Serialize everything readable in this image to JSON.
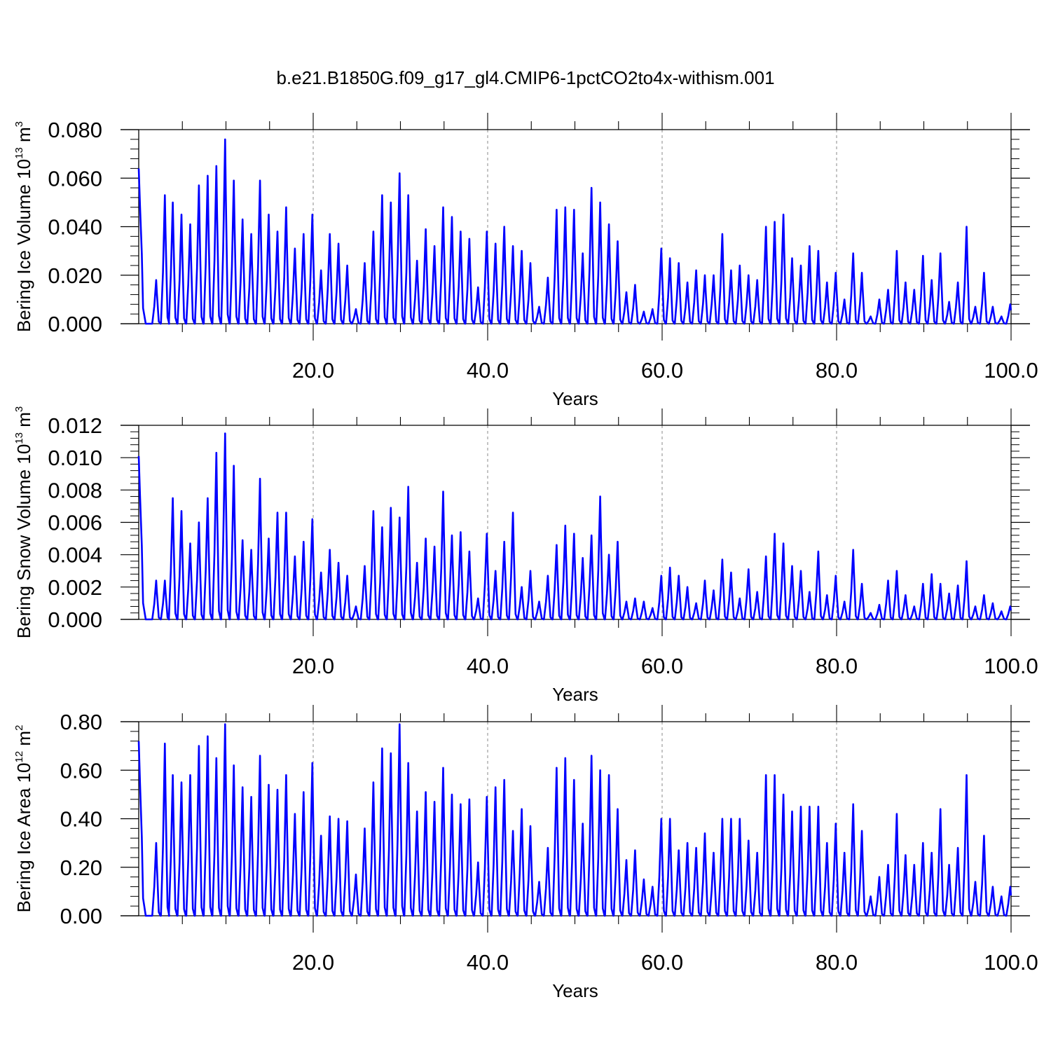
{
  "title": "b.e21.B1850G.f09_g17_gl4.CMIP6-1pctCO2to4x-withism.001",
  "line_color": "#0000ff",
  "chart_data": [
    {
      "type": "line",
      "ylabel_main": "Bering Ice Volume 10",
      "ylabel_exp": "13",
      "ylabel_unit": " m",
      "ylabel_unit_exp": "3",
      "xlabel": "Years",
      "xlim": [
        0,
        100
      ],
      "ylim": [
        0,
        0.08
      ],
      "x_ticks": [
        20,
        40,
        60,
        80,
        100
      ],
      "x_tick_labels": [
        "20.0",
        "40.0",
        "60.0",
        "80.0",
        "100.0"
      ],
      "y_ticks": [
        0,
        0.02,
        0.04,
        0.06,
        0.08
      ],
      "y_tick_labels": [
        "0.000",
        "0.020",
        "0.040",
        "0.060",
        "0.080"
      ],
      "gridlines_x": [
        20,
        40,
        60,
        80
      ],
      "start_value": 0.064,
      "peaks": [
        [
          2.0,
          0.018
        ],
        [
          3.0,
          0.053
        ],
        [
          3.9,
          0.05
        ],
        [
          4.9,
          0.045
        ],
        [
          5.9,
          0.041
        ],
        [
          6.9,
          0.057
        ],
        [
          7.9,
          0.061
        ],
        [
          8.9,
          0.065
        ],
        [
          9.9,
          0.076
        ],
        [
          10.9,
          0.059
        ],
        [
          11.9,
          0.043
        ],
        [
          12.9,
          0.037
        ],
        [
          13.9,
          0.059
        ],
        [
          14.9,
          0.045
        ],
        [
          15.9,
          0.038
        ],
        [
          16.9,
          0.048
        ],
        [
          17.9,
          0.031
        ],
        [
          18.9,
          0.037
        ],
        [
          19.9,
          0.045
        ],
        [
          20.9,
          0.022
        ],
        [
          21.9,
          0.037
        ],
        [
          22.9,
          0.033
        ],
        [
          23.9,
          0.024
        ],
        [
          24.9,
          0.006
        ],
        [
          25.9,
          0.025
        ],
        [
          26.9,
          0.038
        ],
        [
          27.9,
          0.053
        ],
        [
          28.9,
          0.05
        ],
        [
          29.9,
          0.062
        ],
        [
          30.9,
          0.053
        ],
        [
          31.9,
          0.026
        ],
        [
          32.9,
          0.039
        ],
        [
          33.9,
          0.032
        ],
        [
          34.9,
          0.048
        ],
        [
          35.9,
          0.044
        ],
        [
          36.9,
          0.038
        ],
        [
          37.9,
          0.035
        ],
        [
          38.9,
          0.015
        ],
        [
          39.9,
          0.038
        ],
        [
          40.9,
          0.033
        ],
        [
          41.9,
          0.04
        ],
        [
          42.9,
          0.032
        ],
        [
          43.9,
          0.03
        ],
        [
          44.9,
          0.025
        ],
        [
          45.9,
          0.007
        ],
        [
          46.9,
          0.019
        ],
        [
          47.9,
          0.047
        ],
        [
          48.9,
          0.048
        ],
        [
          49.9,
          0.047
        ],
        [
          50.9,
          0.029
        ],
        [
          51.9,
          0.056
        ],
        [
          52.9,
          0.05
        ],
        [
          53.9,
          0.041
        ],
        [
          54.9,
          0.034
        ],
        [
          55.9,
          0.013
        ],
        [
          56.9,
          0.016
        ],
        [
          57.9,
          0.005
        ],
        [
          58.9,
          0.006
        ],
        [
          59.9,
          0.031
        ],
        [
          60.9,
          0.027
        ],
        [
          61.9,
          0.025
        ],
        [
          62.9,
          0.017
        ],
        [
          63.9,
          0.022
        ],
        [
          64.9,
          0.02
        ],
        [
          65.9,
          0.02
        ],
        [
          66.9,
          0.037
        ],
        [
          67.9,
          0.022
        ],
        [
          68.9,
          0.024
        ],
        [
          69.9,
          0.02
        ],
        [
          70.9,
          0.018
        ],
        [
          71.9,
          0.04
        ],
        [
          72.9,
          0.042
        ],
        [
          73.9,
          0.045
        ],
        [
          74.9,
          0.027
        ],
        [
          75.9,
          0.024
        ],
        [
          76.9,
          0.032
        ],
        [
          77.9,
          0.03
        ],
        [
          78.9,
          0.017
        ],
        [
          79.9,
          0.021
        ],
        [
          80.9,
          0.01
        ],
        [
          81.9,
          0.029
        ],
        [
          82.9,
          0.021
        ],
        [
          83.9,
          0.003
        ],
        [
          84.9,
          0.01
        ],
        [
          85.9,
          0.014
        ],
        [
          86.9,
          0.03
        ],
        [
          87.9,
          0.017
        ],
        [
          88.9,
          0.014
        ],
        [
          89.9,
          0.028
        ],
        [
          90.9,
          0.018
        ],
        [
          91.9,
          0.029
        ],
        [
          92.9,
          0.009
        ],
        [
          93.9,
          0.017
        ],
        [
          94.9,
          0.04
        ],
        [
          95.9,
          0.007
        ],
        [
          96.9,
          0.021
        ],
        [
          97.9,
          0.007
        ],
        [
          98.9,
          0.003
        ],
        [
          99.9,
          0.008
        ]
      ]
    },
    {
      "type": "line",
      "ylabel_main": "Bering Snow Volume 10",
      "ylabel_exp": "13",
      "ylabel_unit": " m",
      "ylabel_unit_exp": "3",
      "xlabel": "Years",
      "xlim": [
        0,
        100
      ],
      "ylim": [
        0,
        0.012
      ],
      "x_ticks": [
        20,
        40,
        60,
        80,
        100
      ],
      "x_tick_labels": [
        "20.0",
        "40.0",
        "60.0",
        "80.0",
        "100.0"
      ],
      "y_ticks": [
        0,
        0.002,
        0.004,
        0.006,
        0.008,
        0.01,
        0.012
      ],
      "y_tick_labels": [
        "0.000",
        "0.002",
        "0.004",
        "0.006",
        "0.008",
        "0.010",
        "0.012"
      ],
      "gridlines_x": [
        20,
        40,
        60,
        80
      ],
      "start_value": 0.0101,
      "peaks": [
        [
          2.0,
          0.0024
        ],
        [
          3.0,
          0.0024
        ],
        [
          3.9,
          0.0075
        ],
        [
          4.9,
          0.0067
        ],
        [
          5.9,
          0.0047
        ],
        [
          6.9,
          0.006
        ],
        [
          7.9,
          0.0075
        ],
        [
          8.9,
          0.0103
        ],
        [
          9.9,
          0.0115
        ],
        [
          10.9,
          0.0095
        ],
        [
          11.9,
          0.0049
        ],
        [
          12.9,
          0.0043
        ],
        [
          13.9,
          0.0087
        ],
        [
          14.9,
          0.005
        ],
        [
          15.9,
          0.0066
        ],
        [
          16.9,
          0.0066
        ],
        [
          17.9,
          0.0039
        ],
        [
          18.9,
          0.0048
        ],
        [
          19.9,
          0.0062
        ],
        [
          20.9,
          0.0029
        ],
        [
          21.9,
          0.0043
        ],
        [
          22.9,
          0.0035
        ],
        [
          23.9,
          0.0027
        ],
        [
          24.9,
          0.0008
        ],
        [
          25.9,
          0.0033
        ],
        [
          26.9,
          0.0067
        ],
        [
          27.9,
          0.0057
        ],
        [
          28.9,
          0.0069
        ],
        [
          29.9,
          0.0063
        ],
        [
          30.9,
          0.0082
        ],
        [
          31.9,
          0.0035
        ],
        [
          32.9,
          0.005
        ],
        [
          33.9,
          0.0045
        ],
        [
          34.9,
          0.0079
        ],
        [
          35.9,
          0.0052
        ],
        [
          36.9,
          0.0054
        ],
        [
          37.9,
          0.0042
        ],
        [
          38.9,
          0.0013
        ],
        [
          39.9,
          0.0053
        ],
        [
          40.9,
          0.003
        ],
        [
          41.9,
          0.0048
        ],
        [
          42.9,
          0.0066
        ],
        [
          43.9,
          0.002
        ],
        [
          44.9,
          0.003
        ],
        [
          45.9,
          0.0011
        ],
        [
          46.9,
          0.0027
        ],
        [
          47.9,
          0.0046
        ],
        [
          48.9,
          0.0058
        ],
        [
          49.9,
          0.0053
        ],
        [
          50.9,
          0.0038
        ],
        [
          51.9,
          0.0052
        ],
        [
          52.9,
          0.0076
        ],
        [
          53.9,
          0.004
        ],
        [
          54.9,
          0.0048
        ],
        [
          55.9,
          0.0011
        ],
        [
          56.9,
          0.0013
        ],
        [
          57.9,
          0.0011
        ],
        [
          58.9,
          0.0007
        ],
        [
          59.9,
          0.0027
        ],
        [
          60.9,
          0.0032
        ],
        [
          61.9,
          0.0027
        ],
        [
          62.9,
          0.002
        ],
        [
          63.9,
          0.001
        ],
        [
          64.9,
          0.0024
        ],
        [
          65.9,
          0.0018
        ],
        [
          66.9,
          0.0037
        ],
        [
          67.9,
          0.0029
        ],
        [
          68.9,
          0.0013
        ],
        [
          69.9,
          0.0031
        ],
        [
          70.9,
          0.0017
        ],
        [
          71.9,
          0.0039
        ],
        [
          72.9,
          0.0053
        ],
        [
          73.9,
          0.0047
        ],
        [
          74.9,
          0.0033
        ],
        [
          75.9,
          0.003
        ],
        [
          76.9,
          0.0017
        ],
        [
          77.9,
          0.0042
        ],
        [
          78.9,
          0.0015
        ],
        [
          79.9,
          0.0027
        ],
        [
          80.9,
          0.0011
        ],
        [
          81.9,
          0.0043
        ],
        [
          82.9,
          0.0022
        ],
        [
          83.9,
          0.0004
        ],
        [
          84.9,
          0.0009
        ],
        [
          85.9,
          0.0024
        ],
        [
          86.9,
          0.003
        ],
        [
          87.9,
          0.0015
        ],
        [
          88.9,
          0.0008
        ],
        [
          89.9,
          0.0022
        ],
        [
          90.9,
          0.0028
        ],
        [
          91.9,
          0.0022
        ],
        [
          92.9,
          0.0016
        ],
        [
          93.9,
          0.0021
        ],
        [
          94.9,
          0.0036
        ],
        [
          95.9,
          0.0008
        ],
        [
          96.9,
          0.0015
        ],
        [
          97.9,
          0.001
        ],
        [
          98.9,
          0.0005
        ],
        [
          99.9,
          0.0008
        ]
      ]
    },
    {
      "type": "line",
      "ylabel_main": "Bering Ice Area 10",
      "ylabel_exp": "12",
      "ylabel_unit": " m",
      "ylabel_unit_exp": "2",
      "xlabel": "Years",
      "xlim": [
        0,
        100
      ],
      "ylim": [
        0,
        0.8
      ],
      "x_ticks": [
        20,
        40,
        60,
        80,
        100
      ],
      "x_tick_labels": [
        "20.0",
        "40.0",
        "60.0",
        "80.0",
        "100.0"
      ],
      "y_ticks": [
        0,
        0.2,
        0.4,
        0.6,
        0.8
      ],
      "y_tick_labels": [
        "0.00",
        "0.20",
        "0.40",
        "0.60",
        "0.80"
      ],
      "gridlines_x": [
        20,
        40,
        60,
        80
      ],
      "start_value": 0.72,
      "peaks": [
        [
          2.0,
          0.3
        ],
        [
          3.0,
          0.71
        ],
        [
          3.9,
          0.58
        ],
        [
          4.9,
          0.55
        ],
        [
          5.9,
          0.58
        ],
        [
          6.9,
          0.7
        ],
        [
          7.9,
          0.74
        ],
        [
          8.9,
          0.65
        ],
        [
          9.9,
          0.79
        ],
        [
          10.9,
          0.62
        ],
        [
          11.9,
          0.53
        ],
        [
          12.9,
          0.49
        ],
        [
          13.9,
          0.66
        ],
        [
          14.9,
          0.54
        ],
        [
          15.9,
          0.52
        ],
        [
          16.9,
          0.58
        ],
        [
          17.9,
          0.42
        ],
        [
          18.9,
          0.51
        ],
        [
          19.9,
          0.63
        ],
        [
          20.9,
          0.33
        ],
        [
          21.9,
          0.41
        ],
        [
          22.9,
          0.4
        ],
        [
          23.9,
          0.39
        ],
        [
          24.9,
          0.17
        ],
        [
          25.9,
          0.36
        ],
        [
          26.9,
          0.55
        ],
        [
          27.9,
          0.69
        ],
        [
          28.9,
          0.67
        ],
        [
          29.9,
          0.79
        ],
        [
          30.9,
          0.63
        ],
        [
          31.9,
          0.43
        ],
        [
          32.9,
          0.51
        ],
        [
          33.9,
          0.47
        ],
        [
          34.9,
          0.61
        ],
        [
          35.9,
          0.5
        ],
        [
          36.9,
          0.46
        ],
        [
          37.9,
          0.48
        ],
        [
          38.9,
          0.22
        ],
        [
          39.9,
          0.49
        ],
        [
          40.9,
          0.53
        ],
        [
          41.9,
          0.56
        ],
        [
          42.9,
          0.35
        ],
        [
          43.9,
          0.44
        ],
        [
          44.9,
          0.37
        ],
        [
          45.9,
          0.14
        ],
        [
          46.9,
          0.28
        ],
        [
          47.9,
          0.61
        ],
        [
          48.9,
          0.65
        ],
        [
          49.9,
          0.56
        ],
        [
          50.9,
          0.38
        ],
        [
          51.9,
          0.66
        ],
        [
          52.9,
          0.6
        ],
        [
          53.9,
          0.58
        ],
        [
          54.9,
          0.44
        ],
        [
          55.9,
          0.23
        ],
        [
          56.9,
          0.27
        ],
        [
          57.9,
          0.15
        ],
        [
          58.9,
          0.12
        ],
        [
          59.9,
          0.4
        ],
        [
          60.9,
          0.4
        ],
        [
          61.9,
          0.27
        ],
        [
          62.9,
          0.3
        ],
        [
          63.9,
          0.28
        ],
        [
          64.9,
          0.34
        ],
        [
          65.9,
          0.26
        ],
        [
          66.9,
          0.4
        ],
        [
          67.9,
          0.4
        ],
        [
          68.9,
          0.4
        ],
        [
          69.9,
          0.31
        ],
        [
          70.9,
          0.26
        ],
        [
          71.9,
          0.58
        ],
        [
          72.9,
          0.58
        ],
        [
          73.9,
          0.5
        ],
        [
          74.9,
          0.43
        ],
        [
          75.9,
          0.45
        ],
        [
          76.9,
          0.45
        ],
        [
          77.9,
          0.45
        ],
        [
          78.9,
          0.3
        ],
        [
          79.9,
          0.38
        ],
        [
          80.9,
          0.26
        ],
        [
          81.9,
          0.46
        ],
        [
          82.9,
          0.35
        ],
        [
          83.9,
          0.08
        ],
        [
          84.9,
          0.16
        ],
        [
          85.9,
          0.21
        ],
        [
          86.9,
          0.42
        ],
        [
          87.9,
          0.25
        ],
        [
          88.9,
          0.21
        ],
        [
          89.9,
          0.3
        ],
        [
          90.9,
          0.26
        ],
        [
          91.9,
          0.44
        ],
        [
          92.9,
          0.21
        ],
        [
          93.9,
          0.28
        ],
        [
          94.9,
          0.58
        ],
        [
          95.9,
          0.14
        ],
        [
          96.9,
          0.33
        ],
        [
          97.9,
          0.12
        ],
        [
          98.9,
          0.08
        ],
        [
          99.9,
          0.12
        ]
      ]
    }
  ]
}
